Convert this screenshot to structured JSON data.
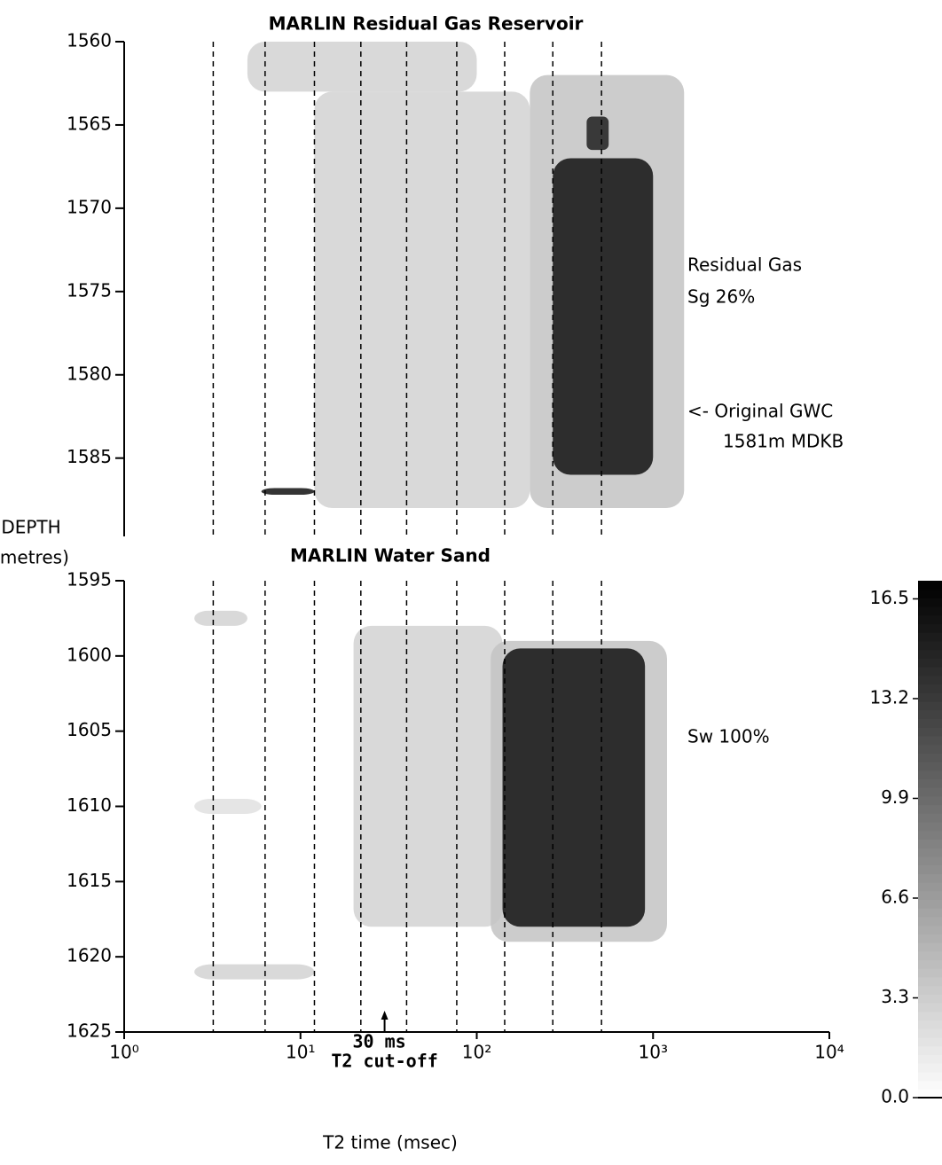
{
  "chart_data": [
    {
      "type": "density",
      "title": "MARLIN Residual Gas Reservoir",
      "ylabel": [
        "DEPTH",
        "(metres)"
      ],
      "xlim": [
        1,
        10000
      ],
      "log_x": true,
      "ylim": [
        1560,
        1589.7
      ],
      "yticks": [
        1560,
        1565,
        1570,
        1575,
        1580,
        1585
      ],
      "reference_x": [
        3.2,
        6.3,
        12,
        22,
        40,
        77,
        144,
        270,
        510
      ],
      "cells": [
        {
          "t2": [
            5,
            100
          ],
          "depth": [
            1560,
            1563
          ],
          "value": 3
        },
        {
          "t2": [
            12,
            200
          ],
          "depth": [
            1563,
            1588
          ],
          "value": 3
        },
        {
          "t2": [
            200,
            1500
          ],
          "depth": [
            1562,
            1588
          ],
          "value": 4
        },
        {
          "t2": [
            270,
            1000
          ],
          "depth": [
            1567,
            1586
          ],
          "value": 16
        },
        {
          "t2": [
            420,
            560
          ],
          "depth": [
            1564.5,
            1566.5
          ],
          "value": 15
        },
        {
          "t2": [
            6,
            12
          ],
          "depth": [
            1586.8,
            1587.2
          ],
          "value": 16
        }
      ],
      "annotations": [
        "Residual Gas",
        "Sg 26%",
        "<- Original GWC",
        "1581m MDKB"
      ]
    },
    {
      "type": "density",
      "title": "MARLIN Water Sand",
      "xlim": [
        1,
        10000
      ],
      "log_x": true,
      "xticks": [
        {
          "value": 1,
          "label": "10⁰"
        },
        {
          "value": 10,
          "label": "10¹"
        },
        {
          "value": 100,
          "label": "10²"
        },
        {
          "value": 1000,
          "label": "10³"
        },
        {
          "value": 10000,
          "label": "10⁴"
        }
      ],
      "xlabel": "T2 time (msec)",
      "ylim": [
        1595,
        1625
      ],
      "yticks": [
        1595,
        1600,
        1605,
        1610,
        1615,
        1620,
        1625
      ],
      "reference_x": [
        3.2,
        6.3,
        12,
        22,
        40,
        77,
        144,
        270,
        510
      ],
      "cutoff": {
        "value": 30,
        "label": [
          "30 ms",
          "T2 cut-off"
        ]
      },
      "cells": [
        {
          "t2": [
            2.5,
            5
          ],
          "depth": [
            1597,
            1598
          ],
          "value": 3
        },
        {
          "t2": [
            2.5,
            12
          ],
          "depth": [
            1620.5,
            1621.5
          ],
          "value": 3
        },
        {
          "t2": [
            2.5,
            6
          ],
          "depth": [
            1609.5,
            1610.5
          ],
          "value": 2
        },
        {
          "t2": [
            20,
            140
          ],
          "depth": [
            1598,
            1618
          ],
          "value": 3
        },
        {
          "t2": [
            120,
            1200
          ],
          "depth": [
            1599,
            1619
          ],
          "value": 4
        },
        {
          "t2": [
            140,
            900
          ],
          "depth": [
            1599.5,
            1618
          ],
          "value": 16
        }
      ],
      "annotations": [
        "Sw 100%"
      ],
      "colorbar": {
        "clim": [
          0,
          17.1
        ],
        "ticks": [
          {
            "value": 0,
            "label": "0.0"
          },
          3.3,
          6.6,
          9.9,
          13.2,
          16.5
        ]
      }
    }
  ]
}
